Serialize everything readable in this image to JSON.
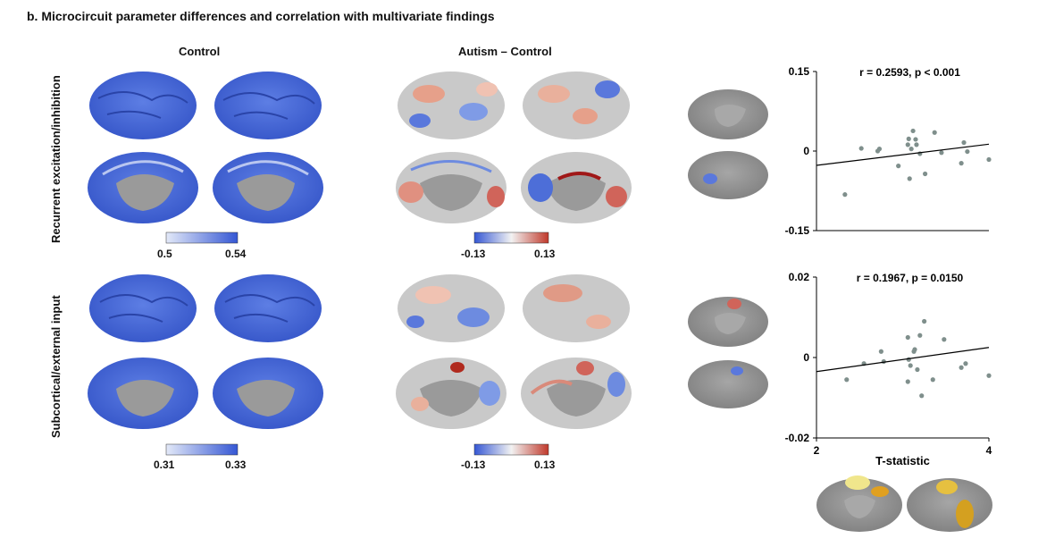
{
  "title": "b. Microcircuit parameter differences and correlation with multivariate findings",
  "columns": {
    "control": "Control",
    "diff": "Autism – Control"
  },
  "rows": [
    {
      "label": "Recurrent excitation/inhibition",
      "control_cbar": {
        "min": "0.5",
        "max": "0.54"
      },
      "diff_cbar": {
        "min": "-0.13",
        "max": "0.13"
      }
    },
    {
      "label": "Subcortical/external input",
      "control_cbar": {
        "min": "0.31",
        "max": "0.33"
      },
      "diff_cbar": {
        "min": "-0.13",
        "max": "0.13"
      }
    }
  ],
  "colors": {
    "control_low": "#dfe6f7",
    "control_high": "#3a5bd6",
    "diff_low": "#3a5bd6",
    "diff_mid": "#f2f2f2",
    "diff_high": "#c0392b",
    "brain_gray": "#8f8f8f",
    "scatter_point": "#7f8f8c"
  },
  "chart_data": [
    {
      "type": "scatter",
      "annotation": "r = 0.2593, p < 0.001",
      "xlim": [
        2,
        4
      ],
      "ylim": [
        -0.15,
        0.15
      ],
      "yticks": [
        "0.15",
        "0",
        "-0.15"
      ],
      "points": [
        {
          "x": 2.33,
          "y": -0.082
        },
        {
          "x": 2.52,
          "y": 0.005
        },
        {
          "x": 2.71,
          "y": 0.0
        },
        {
          "x": 2.73,
          "y": 0.004
        },
        {
          "x": 2.95,
          "y": -0.028
        },
        {
          "x": 3.06,
          "y": 0.012
        },
        {
          "x": 3.07,
          "y": 0.023
        },
        {
          "x": 3.08,
          "y": -0.052
        },
        {
          "x": 3.1,
          "y": 0.004
        },
        {
          "x": 3.12,
          "y": 0.038
        },
        {
          "x": 3.15,
          "y": 0.022
        },
        {
          "x": 3.16,
          "y": 0.012
        },
        {
          "x": 3.2,
          "y": -0.005
        },
        {
          "x": 3.26,
          "y": -0.043
        },
        {
          "x": 3.37,
          "y": 0.035
        },
        {
          "x": 3.45,
          "y": -0.003
        },
        {
          "x": 3.68,
          "y": -0.023
        },
        {
          "x": 3.71,
          "y": 0.016
        },
        {
          "x": 3.75,
          "y": -0.001
        },
        {
          "x": 4.0,
          "y": -0.016
        }
      ],
      "fit": {
        "x": [
          2,
          4
        ],
        "y": [
          -0.027,
          0.013
        ]
      }
    },
    {
      "type": "scatter",
      "annotation": "r = 0.1967, p = 0.0150",
      "xlim": [
        2,
        4
      ],
      "ylim": [
        -0.02,
        0.02
      ],
      "yticks": [
        "0.02",
        "0",
        "-0.02"
      ],
      "xticks": [
        "2",
        "4"
      ],
      "xlabel": "T-statistic",
      "points": [
        {
          "x": 2.35,
          "y": -0.0055
        },
        {
          "x": 2.55,
          "y": -0.0015
        },
        {
          "x": 2.75,
          "y": 0.0015
        },
        {
          "x": 2.78,
          "y": -0.001
        },
        {
          "x": 3.06,
          "y": 0.005
        },
        {
          "x": 3.06,
          "y": -0.006
        },
        {
          "x": 3.07,
          "y": -0.0005
        },
        {
          "x": 3.09,
          "y": -0.002
        },
        {
          "x": 3.13,
          "y": 0.0015
        },
        {
          "x": 3.14,
          "y": 0.002
        },
        {
          "x": 3.17,
          "y": -0.003
        },
        {
          "x": 3.2,
          "y": 0.0055
        },
        {
          "x": 3.22,
          "y": -0.0095
        },
        {
          "x": 3.25,
          "y": 0.009
        },
        {
          "x": 3.35,
          "y": -0.0055
        },
        {
          "x": 3.48,
          "y": 0.0045
        },
        {
          "x": 3.68,
          "y": -0.0025
        },
        {
          "x": 3.73,
          "y": -0.0015
        },
        {
          "x": 4.0,
          "y": -0.0045
        }
      ],
      "fit": {
        "x": [
          2,
          4
        ],
        "y": [
          -0.0035,
          0.0025
        ]
      }
    }
  ]
}
